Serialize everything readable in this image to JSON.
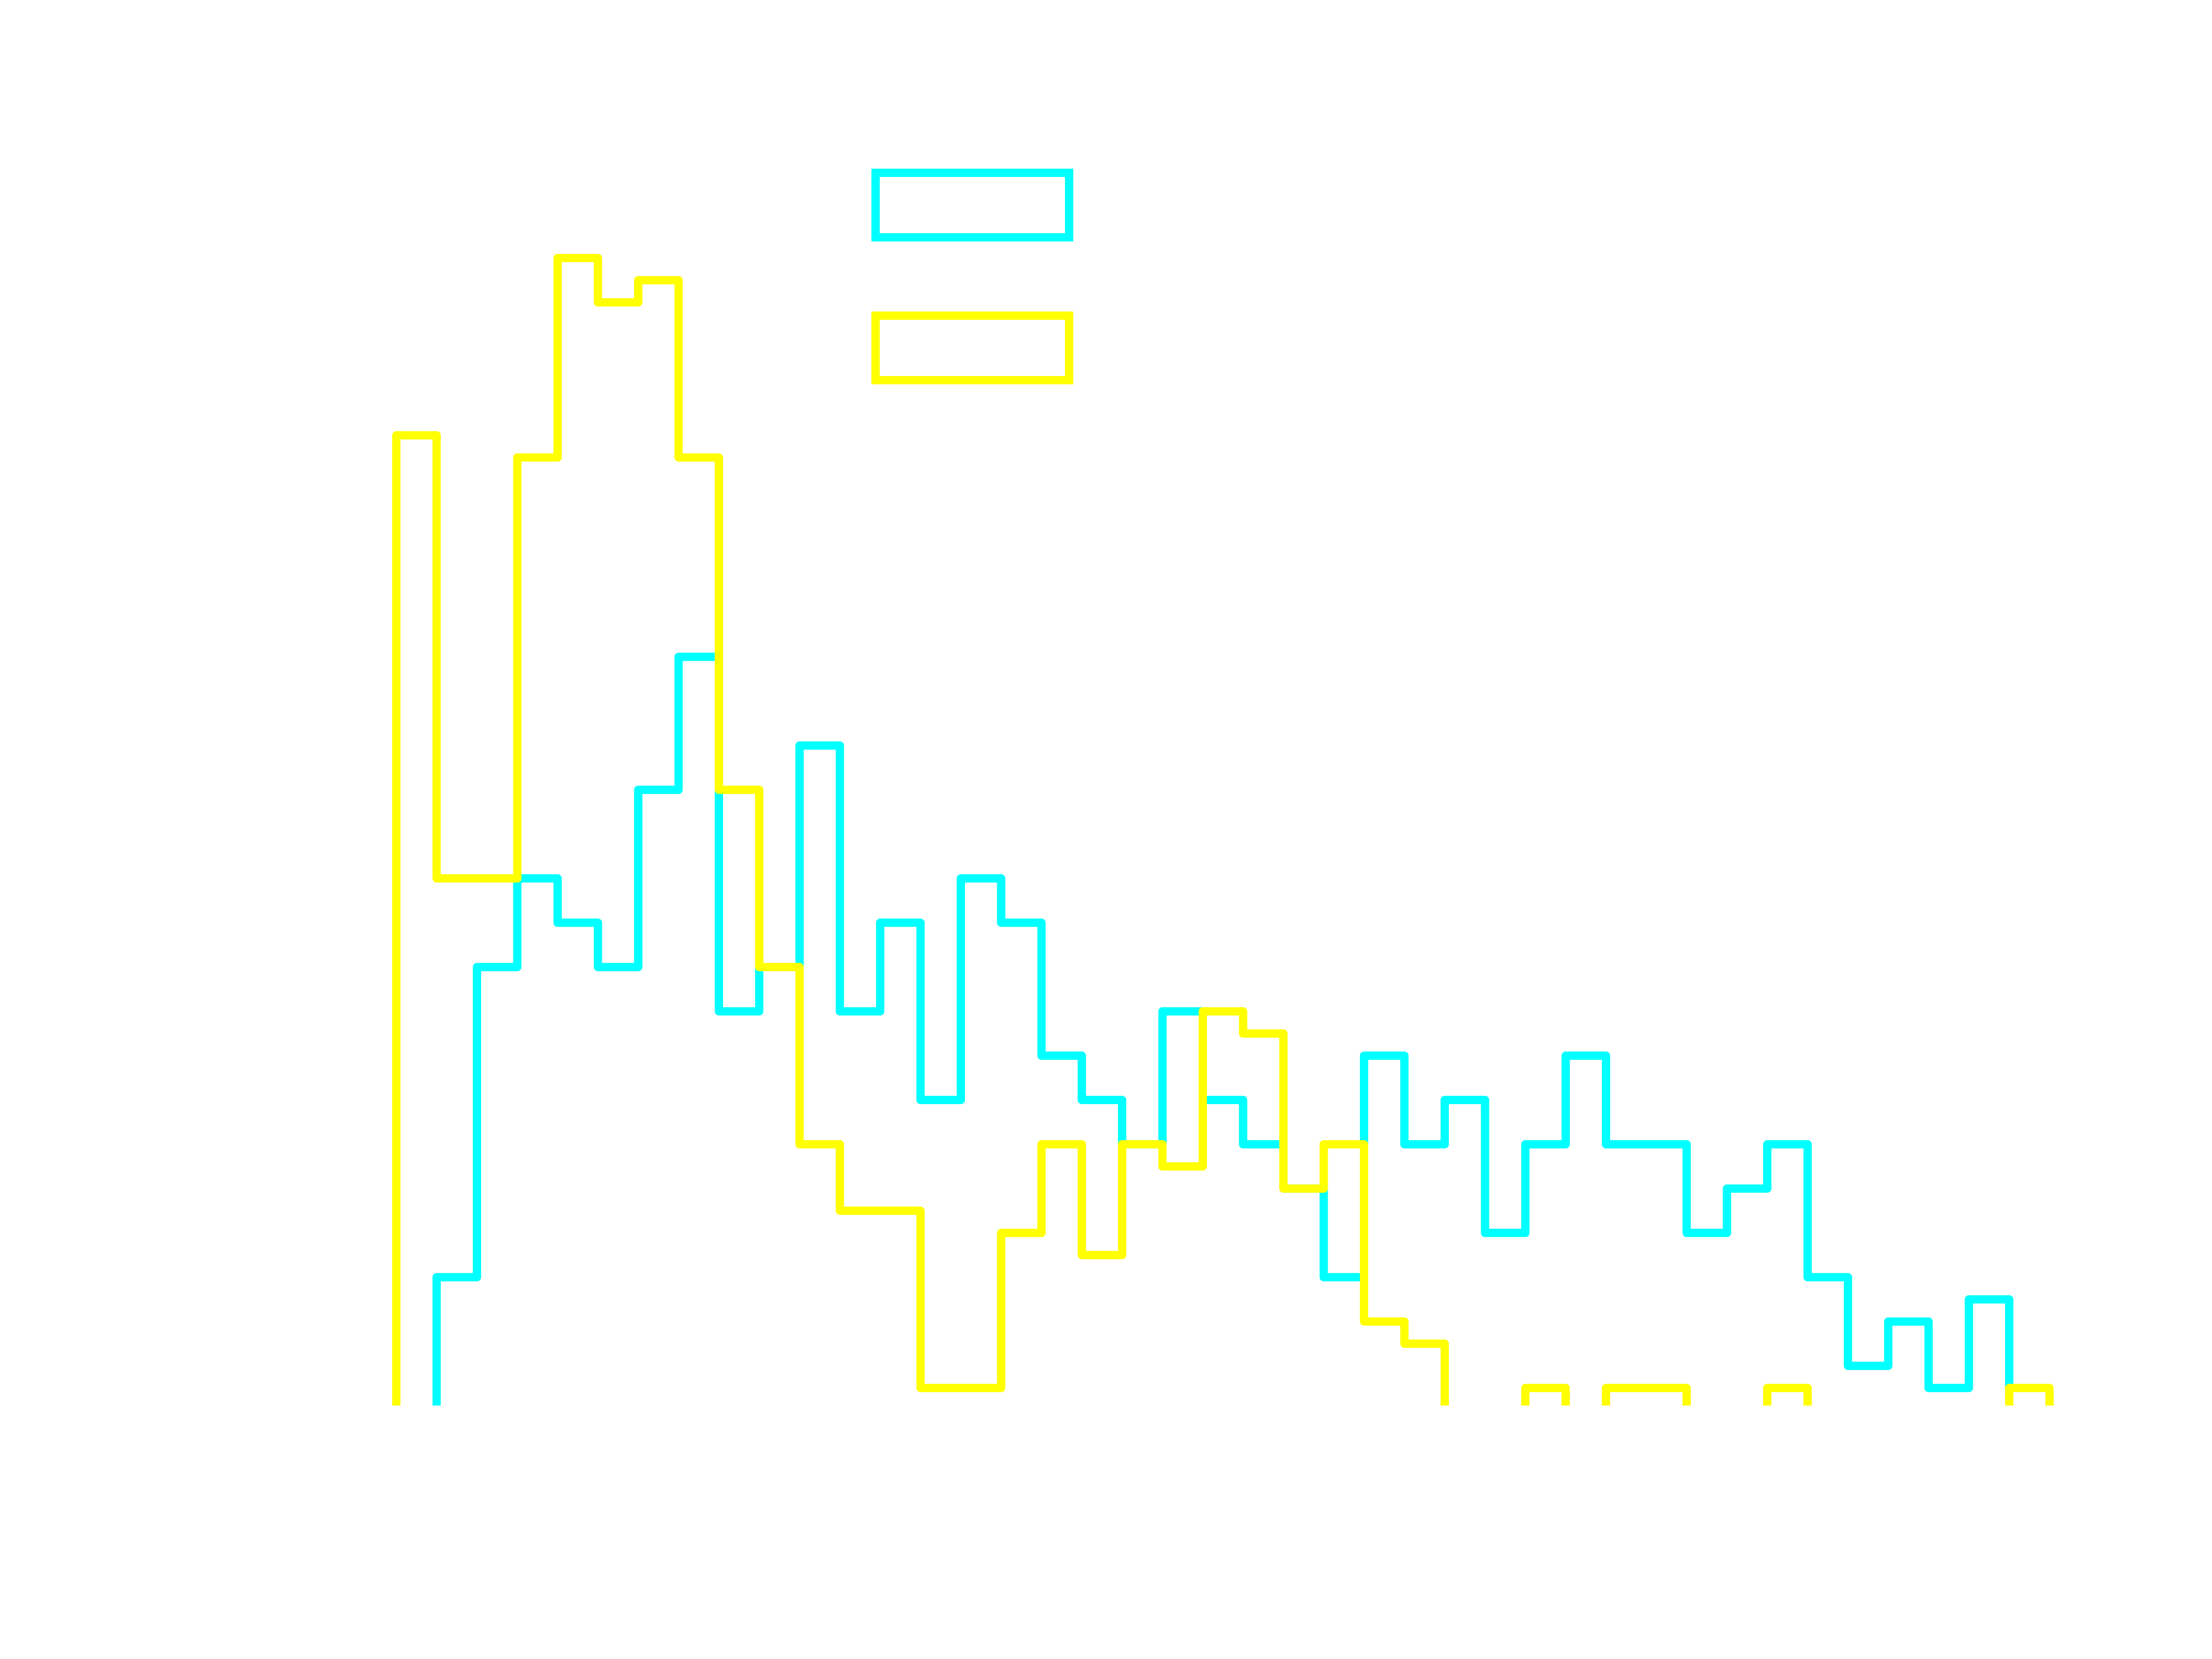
{
  "chart_data": {
    "type": "histogram-step",
    "title": "",
    "xlabel": "",
    "ylabel": "",
    "grid": false,
    "legend": {
      "placement": "top-center",
      "entries": [
        {
          "name": "",
          "color": "#00ffff",
          "style": "outlined-box"
        },
        {
          "name": "",
          "color": "#ffff00",
          "style": "outlined-box"
        }
      ]
    },
    "x_bins": {
      "start": 0,
      "bin_width": 1,
      "count": 41
    },
    "ylim": [
      0,
      26
    ],
    "series": [
      {
        "color": "#00ffff",
        "values": [
          0,
          3,
          10,
          12,
          11,
          10,
          14,
          17,
          9,
          10,
          15,
          9,
          11,
          7,
          12,
          11,
          8,
          7,
          6,
          9,
          7,
          6,
          5,
          3,
          8,
          6,
          7,
          4,
          6,
          8,
          6,
          6,
          4,
          5,
          6,
          3,
          1,
          2,
          0.5,
          2.5,
          0
        ]
      },
      {
        "color": "#ffff00",
        "values": [
          22,
          12,
          12,
          21.5,
          26,
          25,
          25.5,
          21.5,
          14,
          10,
          6,
          4.5,
          4.5,
          0.5,
          0.5,
          4,
          6,
          3.5,
          6,
          5.5,
          9,
          8.5,
          5,
          6,
          2,
          1.5,
          0,
          0,
          0.5,
          0,
          0.5,
          0.5,
          0,
          0,
          0.5,
          0,
          0,
          0,
          0,
          0,
          0.5
        ]
      }
    ]
  }
}
